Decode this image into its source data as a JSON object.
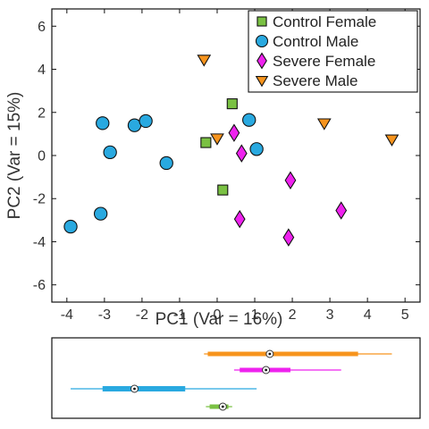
{
  "chart_data": [
    {
      "type": "scatter",
      "xlabel": "PC1 (Var = 16%)",
      "ylabel": "PC2 (Var = 15%)",
      "xlim": [
        -4.4,
        5.4
      ],
      "ylim": [
        -6.8,
        6.8
      ],
      "xticks": [
        -4,
        -3,
        -2,
        -1,
        0,
        1,
        2,
        3,
        4,
        5
      ],
      "yticks": [
        -6,
        -4,
        -2,
        0,
        2,
        4,
        6
      ],
      "grid": false,
      "legend_position": "top-right",
      "series": [
        {
          "name": "Control Female",
          "marker": "square",
          "color": "#7ac143",
          "points": [
            [
              -0.3,
              0.6
            ],
            [
              0.4,
              2.4
            ],
            [
              0.15,
              -1.6
            ]
          ]
        },
        {
          "name": "Control Male",
          "marker": "circle",
          "color": "#29a9e0",
          "points": [
            [
              -3.9,
              -3.3
            ],
            [
              -3.1,
              -2.7
            ],
            [
              -2.85,
              0.15
            ],
            [
              -3.05,
              1.5
            ],
            [
              -2.2,
              1.4
            ],
            [
              -1.9,
              1.6
            ],
            [
              -1.35,
              -0.35
            ],
            [
              0.85,
              1.65
            ],
            [
              1.05,
              0.3
            ]
          ]
        },
        {
          "name": "Severe Female",
          "marker": "diamond",
          "color": "#ee22ee",
          "points": [
            [
              0.45,
              1.05
            ],
            [
              0.65,
              0.1
            ],
            [
              0.6,
              -2.95
            ],
            [
              1.95,
              -1.15
            ],
            [
              1.9,
              -3.8
            ],
            [
              3.3,
              -2.55
            ]
          ]
        },
        {
          "name": "Severe Male",
          "marker": "triangle-down",
          "color": "#f7941d",
          "points": [
            [
              -0.35,
              4.45
            ],
            [
              0.0,
              0.8
            ],
            [
              2.85,
              1.5
            ],
            [
              4.65,
              0.75
            ]
          ]
        }
      ]
    },
    {
      "type": "box",
      "orientation": "horizontal",
      "x_scale": "same as PC1 axis",
      "rows": [
        {
          "series": "Severe Male",
          "color": "#f7941d",
          "min": -0.35,
          "q1": -0.25,
          "median": 1.4,
          "q3": 3.75,
          "max": 4.65
        },
        {
          "series": "Severe Female",
          "color": "#ee22ee",
          "min": 0.45,
          "q1": 0.6,
          "median": 1.3,
          "q3": 1.95,
          "max": 3.3
        },
        {
          "series": "Control Male",
          "color": "#29a9e0",
          "min": -3.9,
          "q1": -3.05,
          "median": -2.2,
          "q3": -0.85,
          "max": 1.05
        },
        {
          "series": "Control Female",
          "color": "#7ac143",
          "min": -0.3,
          "q1": -0.2,
          "median": 0.15,
          "q3": 0.3,
          "max": 0.4
        }
      ]
    }
  ]
}
